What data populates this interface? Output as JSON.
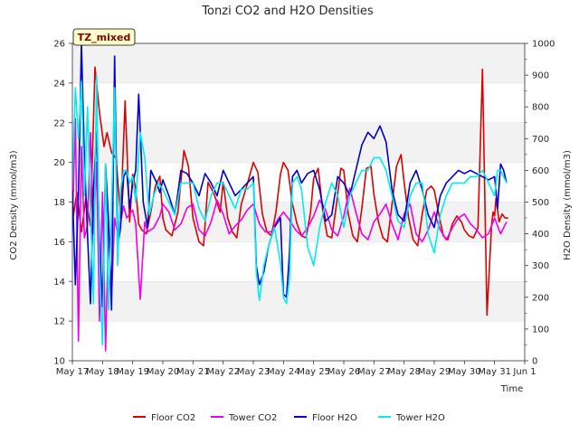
{
  "chart_data": {
    "type": "line",
    "title": "Tonzi CO2 and H2O Densities",
    "xlabel": "Time",
    "ylabel_left": "CO2 Density (mmol/m3)",
    "ylabel_right": "H2O Density (mmol/m3)",
    "ylim_left": [
      10,
      26
    ],
    "ylim_right": [
      0,
      1000
    ],
    "xlim": [
      0,
      15
    ],
    "x_tick_labels": [
      "May 17",
      "May 18",
      "May 19",
      "May 20",
      "May 21",
      "May 22",
      "May 23",
      "May 24",
      "May 25",
      "May 26",
      "May 27",
      "May 28",
      "May 29",
      "May 30",
      "May 31",
      "Jun 1"
    ],
    "y_left_ticks": [
      10,
      12,
      14,
      16,
      18,
      20,
      22,
      24,
      26
    ],
    "y_right_ticks": [
      0,
      100,
      200,
      300,
      400,
      500,
      600,
      700,
      800,
      900,
      1000
    ],
    "badge": "TZ_mixed",
    "legend_location": "bottom-center",
    "background_bands": true,
    "series": [
      {
        "name": "Floor CO2",
        "axis": "left",
        "color": "#dd0000",
        "x": [
          0.0,
          0.15,
          0.3,
          0.45,
          0.6,
          0.75,
          0.9,
          1.05,
          1.15,
          1.3,
          1.45,
          1.6,
          1.75,
          1.9,
          2.0,
          2.1,
          2.2,
          2.3,
          2.45,
          2.6,
          2.75,
          2.9,
          3.0,
          3.1,
          3.3,
          3.5,
          3.7,
          3.85,
          4.0,
          4.2,
          4.35,
          4.5,
          4.7,
          4.9,
          5.0,
          5.15,
          5.3,
          5.45,
          5.6,
          5.8,
          6.0,
          6.15,
          6.3,
          6.45,
          6.6,
          6.75,
          6.9,
          7.0,
          7.15,
          7.3,
          7.45,
          7.6,
          7.75,
          7.9,
          8.0,
          8.15,
          8.3,
          8.45,
          8.6,
          8.75,
          8.9,
          9.0,
          9.15,
          9.3,
          9.45,
          9.6,
          9.75,
          9.9,
          10.0,
          10.15,
          10.3,
          10.45,
          10.6,
          10.75,
          10.9,
          11.0,
          11.15,
          11.3,
          11.45,
          11.6,
          11.75,
          11.9,
          12.0,
          12.15,
          12.3,
          12.45,
          12.6,
          12.75,
          12.9,
          13.0,
          13.15,
          13.3,
          13.45,
          13.6,
          13.75,
          13.9,
          13.95,
          14.0,
          14.05,
          14.15,
          14.25,
          14.35,
          14.45
        ],
        "y": [
          17.0,
          18.5,
          16.5,
          18.2,
          16.8,
          24.8,
          22.5,
          20.8,
          21.5,
          20.5,
          20.2,
          17.2,
          23.1,
          17.0,
          19.4,
          18.7,
          16.9,
          16.6,
          16.4,
          17.5,
          18.8,
          19.3,
          17.2,
          16.6,
          16.3,
          17.5,
          20.6,
          19.8,
          17.2,
          16.0,
          15.8,
          19.0,
          18.4,
          17.5,
          19.0,
          17.2,
          16.5,
          16.2,
          17.9,
          18.9,
          20.0,
          19.5,
          17.4,
          16.5,
          16.3,
          17.5,
          19.4,
          20.0,
          19.6,
          17.9,
          16.9,
          16.3,
          16.2,
          17.5,
          19.2,
          19.7,
          17.6,
          16.3,
          16.2,
          17.8,
          19.7,
          19.6,
          17.4,
          16.3,
          16.0,
          17.7,
          19.7,
          19.8,
          18.4,
          17.0,
          16.2,
          16.0,
          17.9,
          19.8,
          20.4,
          19.0,
          17.2,
          16.1,
          15.8,
          17.4,
          18.6,
          18.8,
          18.6,
          17.4,
          16.3,
          16.1,
          16.9,
          17.3,
          17.0,
          16.6,
          16.3,
          16.2,
          16.7,
          24.7,
          12.3,
          16.8,
          17.5,
          17.3,
          18.2,
          17.0,
          17.4,
          17.2,
          17.2
        ]
      },
      {
        "name": "Tower CO2",
        "axis": "left",
        "color": "#ee00ee",
        "x": [
          0.0,
          0.1,
          0.2,
          0.3,
          0.4,
          0.5,
          0.6,
          0.7,
          0.8,
          0.9,
          1.0,
          1.1,
          1.2,
          1.3,
          1.4,
          1.5,
          1.6,
          1.7,
          1.8,
          1.9,
          2.0,
          2.1,
          2.25,
          2.4,
          2.5,
          2.7,
          2.9,
          3.0,
          3.2,
          3.4,
          3.6,
          3.8,
          4.0,
          4.2,
          4.4,
          4.6,
          4.8,
          5.0,
          5.2,
          5.4,
          5.6,
          5.8,
          6.0,
          6.2,
          6.4,
          6.6,
          6.8,
          7.0,
          7.2,
          7.4,
          7.6,
          7.8,
          8.0,
          8.2,
          8.4,
          8.6,
          8.8,
          9.0,
          9.2,
          9.4,
          9.6,
          9.8,
          10.0,
          10.2,
          10.4,
          10.6,
          10.8,
          11.0,
          11.2,
          11.4,
          11.6,
          11.8,
          12.0,
          12.2,
          12.4,
          12.6,
          12.8,
          13.0,
          13.2,
          13.4,
          13.6,
          13.8,
          14.0,
          14.2,
          14.4
        ],
        "y": [
          16.9,
          22.2,
          11.0,
          20.8,
          16.2,
          16.8,
          21.5,
          16.4,
          20.0,
          12.0,
          18.5,
          10.5,
          17.0,
          13.2,
          17.2,
          16.4,
          17.0,
          17.8,
          17.2,
          17.4,
          17.6,
          16.9,
          13.1,
          17.0,
          16.5,
          16.7,
          17.3,
          17.9,
          17.5,
          16.6,
          16.9,
          17.7,
          17.9,
          16.6,
          16.3,
          17.0,
          18.1,
          17.4,
          16.4,
          16.8,
          17.1,
          17.6,
          17.9,
          16.9,
          16.5,
          16.5,
          17.1,
          17.5,
          17.1,
          16.6,
          16.3,
          16.7,
          17.3,
          18.1,
          17.6,
          16.6,
          16.3,
          17.3,
          18.7,
          17.5,
          16.4,
          16.1,
          17.0,
          17.4,
          17.9,
          16.9,
          16.1,
          17.4,
          17.9,
          16.4,
          16.0,
          16.6,
          17.5,
          16.6,
          16.1,
          16.7,
          17.2,
          17.4,
          16.9,
          16.6,
          16.2,
          16.4,
          17.2,
          16.4,
          17.0
        ]
      },
      {
        "name": "Floor H2O",
        "axis": "right",
        "color": "#0000cc",
        "x": [
          0.0,
          0.1,
          0.2,
          0.3,
          0.4,
          0.5,
          0.6,
          0.7,
          0.8,
          0.9,
          1.0,
          1.1,
          1.2,
          1.3,
          1.4,
          1.5,
          1.6,
          1.7,
          1.8,
          1.9,
          2.0,
          2.1,
          2.2,
          2.35,
          2.5,
          2.6,
          2.7,
          2.8,
          2.9,
          3.0,
          3.2,
          3.4,
          3.6,
          3.8,
          4.0,
          4.2,
          4.4,
          4.6,
          4.8,
          5.0,
          5.2,
          5.4,
          5.6,
          5.8,
          6.0,
          6.1,
          6.2,
          6.35,
          6.5,
          6.7,
          6.9,
          7.0,
          7.1,
          7.2,
          7.3,
          7.45,
          7.6,
          7.8,
          8.0,
          8.2,
          8.4,
          8.6,
          8.8,
          9.0,
          9.2,
          9.4,
          9.6,
          9.8,
          10.0,
          10.2,
          10.4,
          10.6,
          10.8,
          11.0,
          11.2,
          11.4,
          11.6,
          11.8,
          12.0,
          12.2,
          12.4,
          12.6,
          12.8,
          13.0,
          13.2,
          13.4,
          13.6,
          13.8,
          14.0,
          14.1,
          14.2,
          14.3,
          14.4
        ],
        "y": [
          540,
          240,
          520,
          1000,
          640,
          400,
          180,
          540,
          720,
          380,
          170,
          620,
          440,
          160,
          960,
          360,
          420,
          580,
          600,
          480,
          560,
          600,
          840,
          500,
          420,
          600,
          580,
          560,
          530,
          570,
          520,
          460,
          600,
          590,
          560,
          520,
          590,
          560,
          520,
          600,
          560,
          520,
          540,
          560,
          580,
          300,
          240,
          280,
          360,
          420,
          450,
          210,
          200,
          340,
          580,
          600,
          560,
          590,
          600,
          540,
          440,
          460,
          580,
          560,
          520,
          600,
          680,
          720,
          700,
          740,
          690,
          540,
          460,
          440,
          560,
          600,
          540,
          460,
          420,
          520,
          560,
          580,
          600,
          590,
          600,
          590,
          580,
          570,
          580,
          480,
          620,
          600,
          560
        ]
      },
      {
        "name": "Tower H2O",
        "axis": "right",
        "color": "#00eeee",
        "x": [
          0.0,
          0.1,
          0.2,
          0.3,
          0.4,
          0.5,
          0.6,
          0.7,
          0.8,
          0.9,
          1.0,
          1.1,
          1.2,
          1.3,
          1.4,
          1.5,
          1.6,
          1.7,
          1.8,
          1.9,
          2.0,
          2.1,
          2.25,
          2.4,
          2.55,
          2.7,
          2.85,
          3.0,
          3.2,
          3.4,
          3.6,
          3.8,
          4.0,
          4.2,
          4.4,
          4.6,
          4.8,
          5.0,
          5.2,
          5.4,
          5.6,
          5.8,
          6.0,
          6.1,
          6.2,
          6.35,
          6.5,
          6.7,
          6.9,
          7.0,
          7.1,
          7.2,
          7.3,
          7.45,
          7.6,
          7.8,
          8.0,
          8.2,
          8.4,
          8.6,
          8.8,
          9.0,
          9.2,
          9.4,
          9.6,
          9.8,
          10.0,
          10.2,
          10.4,
          10.6,
          10.8,
          11.0,
          11.2,
          11.4,
          11.6,
          11.8,
          12.0,
          12.2,
          12.4,
          12.6,
          12.8,
          13.0,
          13.2,
          13.4,
          13.6,
          13.8,
          14.0,
          14.1,
          14.2,
          14.3,
          14.4
        ],
        "y": [
          560,
          860,
          700,
          880,
          520,
          800,
          480,
          180,
          900,
          300,
          50,
          620,
          160,
          480,
          860,
          300,
          540,
          600,
          600,
          560,
          580,
          500,
          720,
          640,
          460,
          520,
          560,
          540,
          500,
          460,
          560,
          560,
          560,
          480,
          440,
          520,
          560,
          560,
          520,
          480,
          540,
          540,
          560,
          280,
          190,
          300,
          360,
          420,
          310,
          200,
          180,
          260,
          560,
          580,
          540,
          360,
          300,
          420,
          500,
          560,
          520,
          420,
          520,
          560,
          600,
          600,
          640,
          640,
          600,
          520,
          440,
          420,
          520,
          560,
          560,
          400,
          340,
          460,
          520,
          560,
          560,
          560,
          580,
          580,
          600,
          560,
          520,
          600,
          600,
          580,
          560
        ]
      }
    ]
  }
}
